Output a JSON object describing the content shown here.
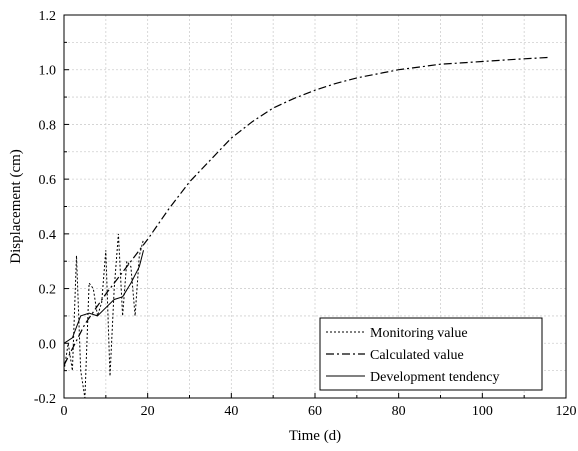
{
  "chart_data": {
    "type": "line",
    "xlabel": "Time (d)",
    "ylabel": "Displacement (cm)",
    "xlim": [
      0,
      120
    ],
    "ylim": [
      -0.2,
      1.2
    ],
    "xticks": [
      "0",
      "20",
      "40",
      "60",
      "80",
      "100",
      "120"
    ],
    "yticks": [
      "-0.2",
      "0.0",
      "0.2",
      "0.4",
      "0.6",
      "0.8",
      "1.0",
      "1.2"
    ],
    "grid": true,
    "legend_position": "bottom-right",
    "series": [
      {
        "name": "Monitoring value",
        "style": "dotted",
        "color": "#000000",
        "x": [
          0,
          1,
          2,
          3,
          4,
          5,
          6,
          7,
          8,
          9,
          10,
          11,
          12,
          13,
          14,
          15,
          16,
          17,
          18,
          19
        ],
        "y": [
          -0.1,
          0.0,
          -0.1,
          0.32,
          -0.1,
          -0.2,
          0.22,
          0.2,
          0.1,
          0.15,
          0.34,
          -0.12,
          0.2,
          0.4,
          0.1,
          0.3,
          0.28,
          0.1,
          0.32,
          0.38
        ]
      },
      {
        "name": "Calculated value",
        "style": "dash-dot",
        "color": "#000000",
        "x": [
          0,
          5,
          10,
          15,
          20,
          25,
          30,
          35,
          40,
          45,
          50,
          55,
          60,
          65,
          70,
          75,
          80,
          85,
          90,
          95,
          100,
          105,
          110,
          116
        ],
        "y": [
          -0.08,
          0.07,
          0.18,
          0.28,
          0.38,
          0.49,
          0.59,
          0.67,
          0.75,
          0.81,
          0.86,
          0.895,
          0.925,
          0.95,
          0.97,
          0.985,
          1.0,
          1.01,
          1.02,
          1.025,
          1.03,
          1.035,
          1.04,
          1.045
        ]
      },
      {
        "name": "Development tendency",
        "style": "solid",
        "color": "#000000",
        "x": [
          0,
          2,
          4,
          6,
          8,
          10,
          12,
          14,
          16,
          18,
          19
        ],
        "y": [
          0.0,
          0.02,
          0.1,
          0.11,
          0.1,
          0.13,
          0.16,
          0.17,
          0.22,
          0.28,
          0.34
        ]
      }
    ]
  }
}
